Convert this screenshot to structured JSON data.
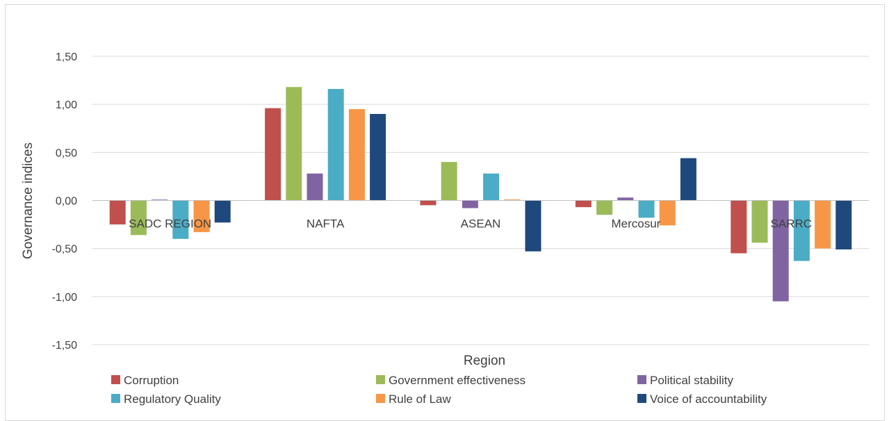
{
  "chart_data": {
    "type": "bar",
    "title": "",
    "xlabel": "Region",
    "ylabel": "Governance indices",
    "ylim": [
      -1.5,
      1.5
    ],
    "yticks": [
      "1,50",
      "1,00",
      "0,50",
      "0,00",
      "-0,50",
      "-1,00",
      "-1,50"
    ],
    "ytick_values": [
      1.5,
      1.0,
      0.5,
      0.0,
      -0.5,
      -1.0,
      -1.5
    ],
    "grid": true,
    "legend_position": "bottom",
    "categories": [
      "SADC REGION",
      "NAFTA",
      "ASEAN",
      "Mercosur",
      "SARRC"
    ],
    "series": [
      {
        "name": "Corruption",
        "color": "#C0504D",
        "values": [
          -0.25,
          0.96,
          -0.05,
          -0.07,
          -0.55
        ]
      },
      {
        "name": "Government effectiveness",
        "color": "#9BBB59",
        "values": [
          -0.36,
          1.18,
          0.4,
          -0.15,
          -0.44
        ]
      },
      {
        "name": "Political stability",
        "color": "#8064A2",
        "values": [
          0.0,
          0.28,
          -0.08,
          0.03,
          -1.05
        ]
      },
      {
        "name": "Regulatory Quality",
        "color": "#4BACC6",
        "values": [
          -0.4,
          1.16,
          0.28,
          -0.18,
          -0.63
        ]
      },
      {
        "name": "Rule of Law",
        "color": "#F79646",
        "values": [
          -0.33,
          0.95,
          0.01,
          -0.26,
          -0.5
        ]
      },
      {
        "name": "Voice of accountability",
        "color": "#1F497D",
        "values": [
          -0.23,
          0.9,
          -0.53,
          0.44,
          -0.51
        ]
      }
    ]
  }
}
